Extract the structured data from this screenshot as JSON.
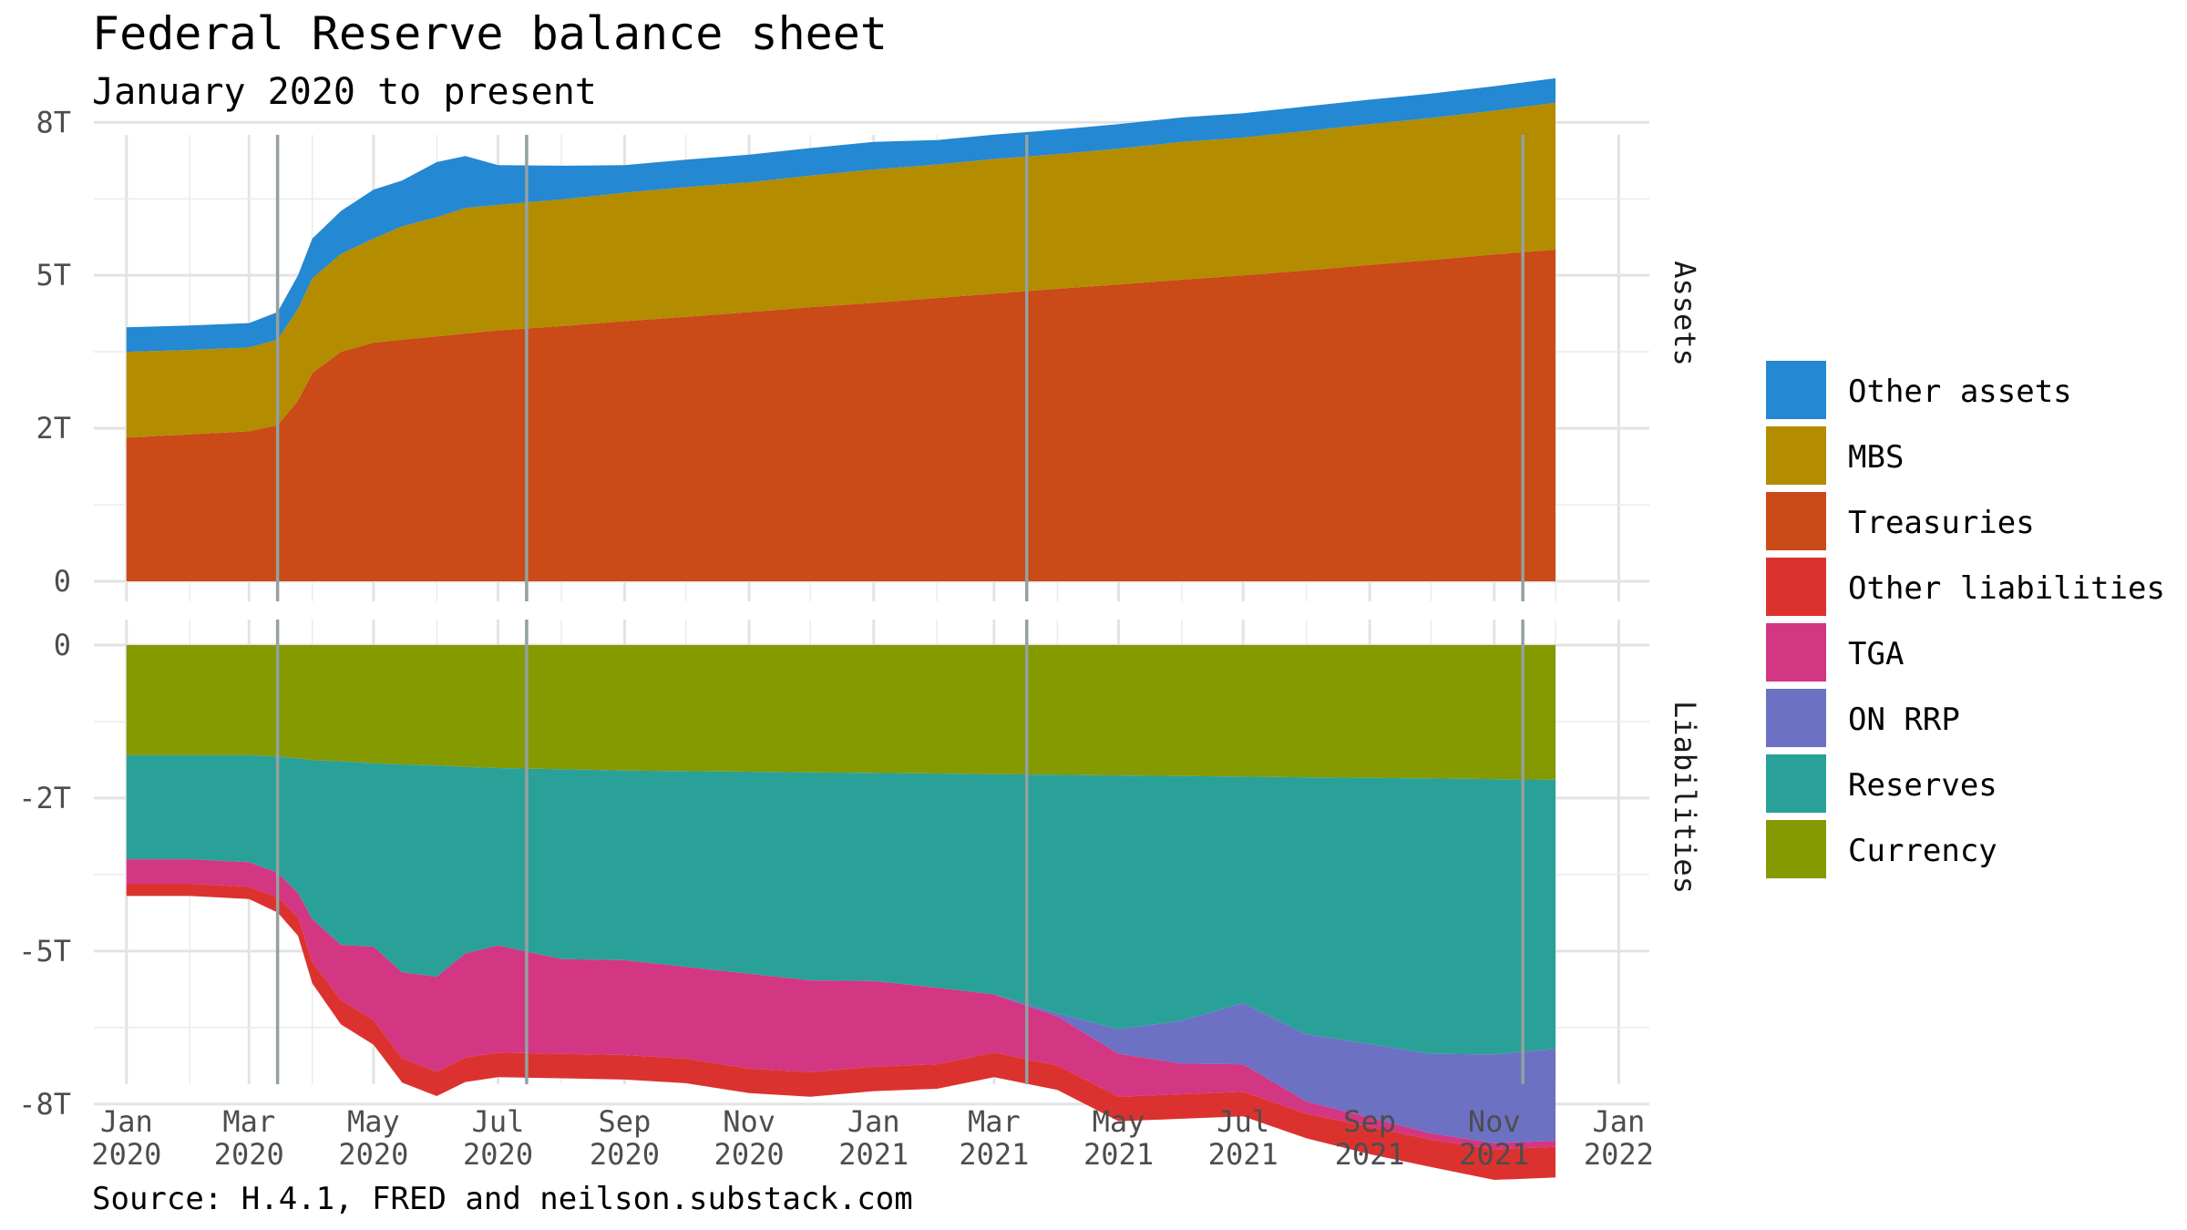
{
  "title": "Federal Reserve balance sheet",
  "subtitle": "January 2020 to present",
  "caption": "Source: H.4.1, FRED and neilson.substack.com",
  "chart_data": {
    "type": "area",
    "layout": "two stacked panels sharing one date axis (stacked areas)",
    "x_ticks": [
      {
        "date": "2020-01-01",
        "month": "Jan",
        "year": "2020"
      },
      {
        "date": "2020-03-01",
        "month": "Mar",
        "year": "2020"
      },
      {
        "date": "2020-05-01",
        "month": "May",
        "year": "2020"
      },
      {
        "date": "2020-07-01",
        "month": "Jul",
        "year": "2020"
      },
      {
        "date": "2020-09-01",
        "month": "Sep",
        "year": "2020"
      },
      {
        "date": "2020-11-01",
        "month": "Nov",
        "year": "2020"
      },
      {
        "date": "2021-01-01",
        "month": "Jan",
        "year": "2021"
      },
      {
        "date": "2021-03-01",
        "month": "Mar",
        "year": "2021"
      },
      {
        "date": "2021-05-01",
        "month": "May",
        "year": "2021"
      },
      {
        "date": "2021-07-01",
        "month": "Jul",
        "year": "2021"
      },
      {
        "date": "2021-09-01",
        "month": "Sep",
        "year": "2021"
      },
      {
        "date": "2021-11-01",
        "month": "Nov",
        "year": "2021"
      },
      {
        "date": "2022-01-01",
        "month": "Jan",
        "year": "2022"
      }
    ],
    "xlim": [
      "2019-12-16",
      "2022-01-16"
    ],
    "vertical_lines": [
      "2020-03-15",
      "2020-07-15",
      "2021-03-17",
      "2021-11-15"
    ],
    "grid": true,
    "legend_position": "right",
    "panels": [
      {
        "strip": "Assets",
        "ylim": [
          0,
          9
        ],
        "y_ticks": [
          {
            "value": 0,
            "label": "0"
          },
          {
            "value": 2.5,
            "label": "2T"
          },
          {
            "value": 5,
            "label": "5T"
          },
          {
            "value": 7.5,
            "label": "8T"
          }
        ],
        "dates": [
          "2020-01-01",
          "2020-02-01",
          "2020-03-01",
          "2020-03-15",
          "2020-03-25",
          "2020-04-01",
          "2020-04-15",
          "2020-05-01",
          "2020-05-15",
          "2020-06-01",
          "2020-06-15",
          "2020-07-01",
          "2020-08-01",
          "2020-09-01",
          "2020-10-01",
          "2020-11-01",
          "2020-12-01",
          "2021-01-01",
          "2021-02-01",
          "2021-03-01",
          "2021-04-01",
          "2021-05-01",
          "2021-06-01",
          "2021-07-01",
          "2021-08-01",
          "2021-09-01",
          "2021-10-01",
          "2021-11-01",
          "2021-12-01"
        ],
        "series": [
          {
            "name": "Treasuries",
            "color": "#CA4A18",
            "values": [
              2.35,
              2.4,
              2.45,
              2.55,
              2.95,
              3.4,
              3.75,
              3.9,
              3.95,
              4.0,
              4.05,
              4.1,
              4.17,
              4.25,
              4.32,
              4.4,
              4.48,
              4.55,
              4.63,
              4.7,
              4.78,
              4.85,
              4.93,
              5.0,
              5.08,
              5.17,
              5.25,
              5.34,
              5.42
            ]
          },
          {
            "name": "MBS",
            "color": "#B38C00",
            "values": [
              1.4,
              1.38,
              1.37,
              1.4,
              1.5,
              1.55,
              1.6,
              1.7,
              1.85,
              1.95,
              2.05,
              2.05,
              2.07,
              2.1,
              2.12,
              2.12,
              2.15,
              2.18,
              2.18,
              2.2,
              2.2,
              2.22,
              2.25,
              2.25,
              2.28,
              2.3,
              2.32,
              2.35,
              2.4
            ]
          },
          {
            "name": "Other assets",
            "color": "#2488D2",
            "values": [
              0.4,
              0.4,
              0.4,
              0.45,
              0.55,
              0.65,
              0.7,
              0.8,
              0.75,
              0.9,
              0.85,
              0.65,
              0.55,
              0.45,
              0.45,
              0.45,
              0.45,
              0.45,
              0.4,
              0.4,
              0.4,
              0.4,
              0.4,
              0.4,
              0.4,
              0.4,
              0.4,
              0.4,
              0.4
            ]
          }
        ]
      },
      {
        "strip": "Liabilities",
        "ylim": [
          -8.9,
          0.4
        ],
        "y_ticks": [
          {
            "value": 0,
            "label": "0"
          },
          {
            "value": -2.5,
            "label": "-2T"
          },
          {
            "value": -5,
            "label": "-5T"
          },
          {
            "value": -7.5,
            "label": "-8T"
          }
        ],
        "dates": [
          "2020-01-01",
          "2020-02-01",
          "2020-03-01",
          "2020-03-15",
          "2020-03-25",
          "2020-04-01",
          "2020-04-15",
          "2020-05-01",
          "2020-05-15",
          "2020-06-01",
          "2020-06-15",
          "2020-07-01",
          "2020-08-01",
          "2020-09-01",
          "2020-10-01",
          "2020-11-01",
          "2020-12-01",
          "2021-01-01",
          "2021-02-01",
          "2021-03-01",
          "2021-04-01",
          "2021-05-01",
          "2021-06-01",
          "2021-07-01",
          "2021-08-01",
          "2021-09-01",
          "2021-10-01",
          "2021-11-01",
          "2021-12-01"
        ],
        "series": [
          {
            "name": "Currency",
            "color": "#859900",
            "values": [
              -1.8,
              -1.8,
              -1.8,
              -1.82,
              -1.85,
              -1.88,
              -1.9,
              -1.93,
              -1.95,
              -1.97,
              -1.99,
              -2.01,
              -2.03,
              -2.05,
              -2.06,
              -2.07,
              -2.08,
              -2.09,
              -2.1,
              -2.11,
              -2.12,
              -2.13,
              -2.14,
              -2.15,
              -2.16,
              -2.17,
              -2.18,
              -2.19,
              -2.2
            ]
          },
          {
            "name": "Reserves",
            "color": "#2AA198",
            "values": [
              -1.7,
              -1.7,
              -1.75,
              -1.9,
              -2.2,
              -2.6,
              -3.0,
              -3.0,
              -3.4,
              -3.45,
              -3.05,
              -2.9,
              -3.1,
              -3.1,
              -3.2,
              -3.3,
              -3.4,
              -3.4,
              -3.5,
              -3.6,
              -3.9,
              -4.15,
              -4.0,
              -3.7,
              -4.2,
              -4.35,
              -4.5,
              -4.5,
              -4.4
            ]
          },
          {
            "name": "ON RRP",
            "color": "#6C71C4",
            "values": [
              0,
              0,
              0,
              0,
              0,
              0,
              0,
              0,
              0,
              0,
              0,
              0,
              0,
              0,
              0,
              0,
              0,
              0,
              0,
              0,
              -0.05,
              -0.4,
              -0.7,
              -1.0,
              -1.1,
              -1.2,
              -1.3,
              -1.45,
              -1.5
            ]
          },
          {
            "name": "TGA",
            "color": "#D33682",
            "values": [
              -0.4,
              -0.4,
              -0.4,
              -0.4,
              -0.4,
              -0.7,
              -0.9,
              -1.2,
              -1.4,
              -1.55,
              -1.7,
              -1.75,
              -1.55,
              -1.55,
              -1.5,
              -1.55,
              -1.5,
              -1.4,
              -1.25,
              -0.95,
              -0.8,
              -0.7,
              -0.5,
              -0.45,
              -0.2,
              -0.15,
              -0.1,
              -0.1,
              -0.1
            ]
          },
          {
            "name": "Other liabilities",
            "color": "#DC322F",
            "values": [
              -0.2,
              -0.2,
              -0.2,
              -0.25,
              -0.3,
              -0.35,
              -0.4,
              -0.4,
              -0.4,
              -0.4,
              -0.4,
              -0.4,
              -0.4,
              -0.4,
              -0.4,
              -0.4,
              -0.4,
              -0.4,
              -0.4,
              -0.4,
              -0.4,
              -0.4,
              -0.4,
              -0.4,
              -0.4,
              -0.45,
              -0.45,
              -0.5,
              -0.5
            ]
          }
        ]
      }
    ]
  },
  "legend": {
    "items": [
      {
        "label": "Other assets",
        "color": "#2488D2"
      },
      {
        "label": "MBS",
        "color": "#B38C00"
      },
      {
        "label": "Treasuries",
        "color": "#CA4A18"
      },
      {
        "label": "Other liabilities",
        "color": "#DC322F"
      },
      {
        "label": "TGA",
        "color": "#D33682"
      },
      {
        "label": "ON RRP",
        "color": "#6C71C4"
      },
      {
        "label": "Reserves",
        "color": "#2AA198"
      },
      {
        "label": "Currency",
        "color": "#859900"
      }
    ]
  }
}
